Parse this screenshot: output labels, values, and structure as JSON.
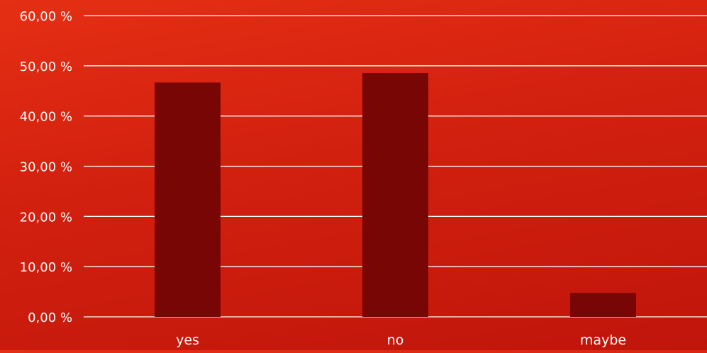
{
  "chart_data": {
    "type": "bar",
    "categories": [
      "yes",
      "no",
      "maybe"
    ],
    "values": [
      46.67,
      48.57,
      4.76
    ],
    "ylim": [
      0,
      60
    ],
    "yticks": [
      0,
      10,
      20,
      30,
      40,
      50,
      60
    ],
    "ytick_labels": [
      "0,00 %",
      "10,00 %",
      "20,00 %",
      "30,00 %",
      "40,00 %",
      "50,00 %",
      "60,00 %"
    ],
    "grid": true,
    "legend": "none",
    "title": "",
    "xlabel": "",
    "ylabel": "",
    "colors": {
      "bar": "#780604",
      "grid": "#ffffff",
      "text": "#ffffff",
      "background": "#d41f10"
    }
  }
}
